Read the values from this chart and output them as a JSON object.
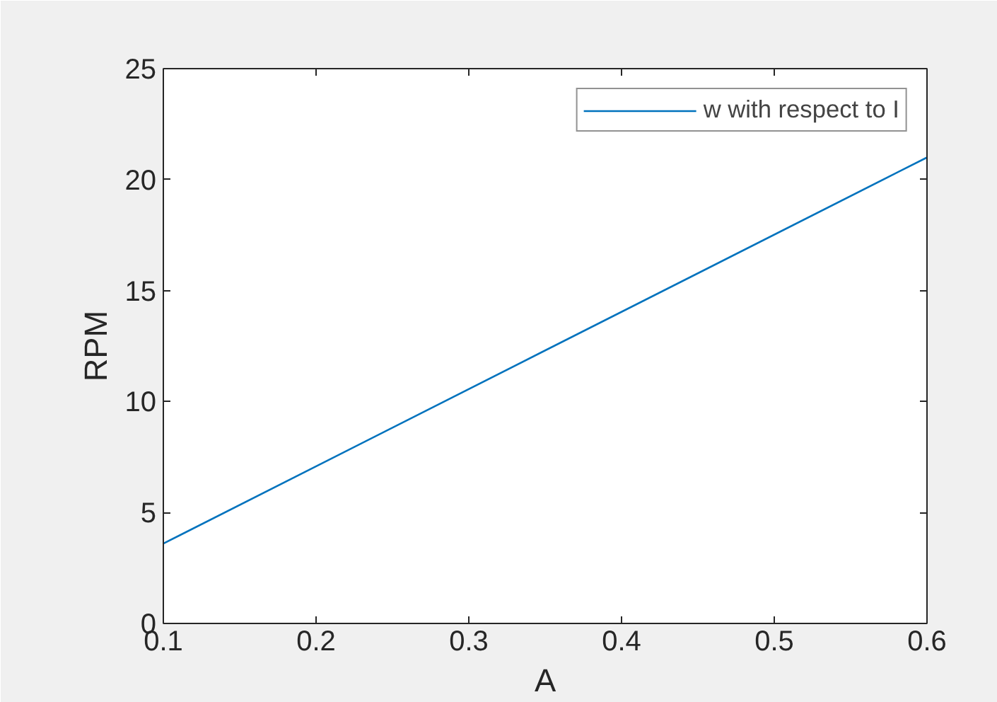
{
  "chart_data": {
    "type": "line",
    "xlabel": "A",
    "ylabel": "RPM",
    "x": [
      0.1,
      0.6
    ],
    "series": [
      {
        "name": "w with respect to I",
        "color": "#0072bd",
        "values": [
          3.6,
          21
        ]
      }
    ],
    "xlim": [
      0.1,
      0.6
    ],
    "xticks": [
      0.1,
      0.2,
      0.3,
      0.4,
      0.5,
      0.6
    ],
    "ylim": [
      0,
      25
    ],
    "yticks": [
      0,
      5,
      10,
      15,
      20,
      25
    ],
    "grid": false,
    "legend": "top right"
  }
}
